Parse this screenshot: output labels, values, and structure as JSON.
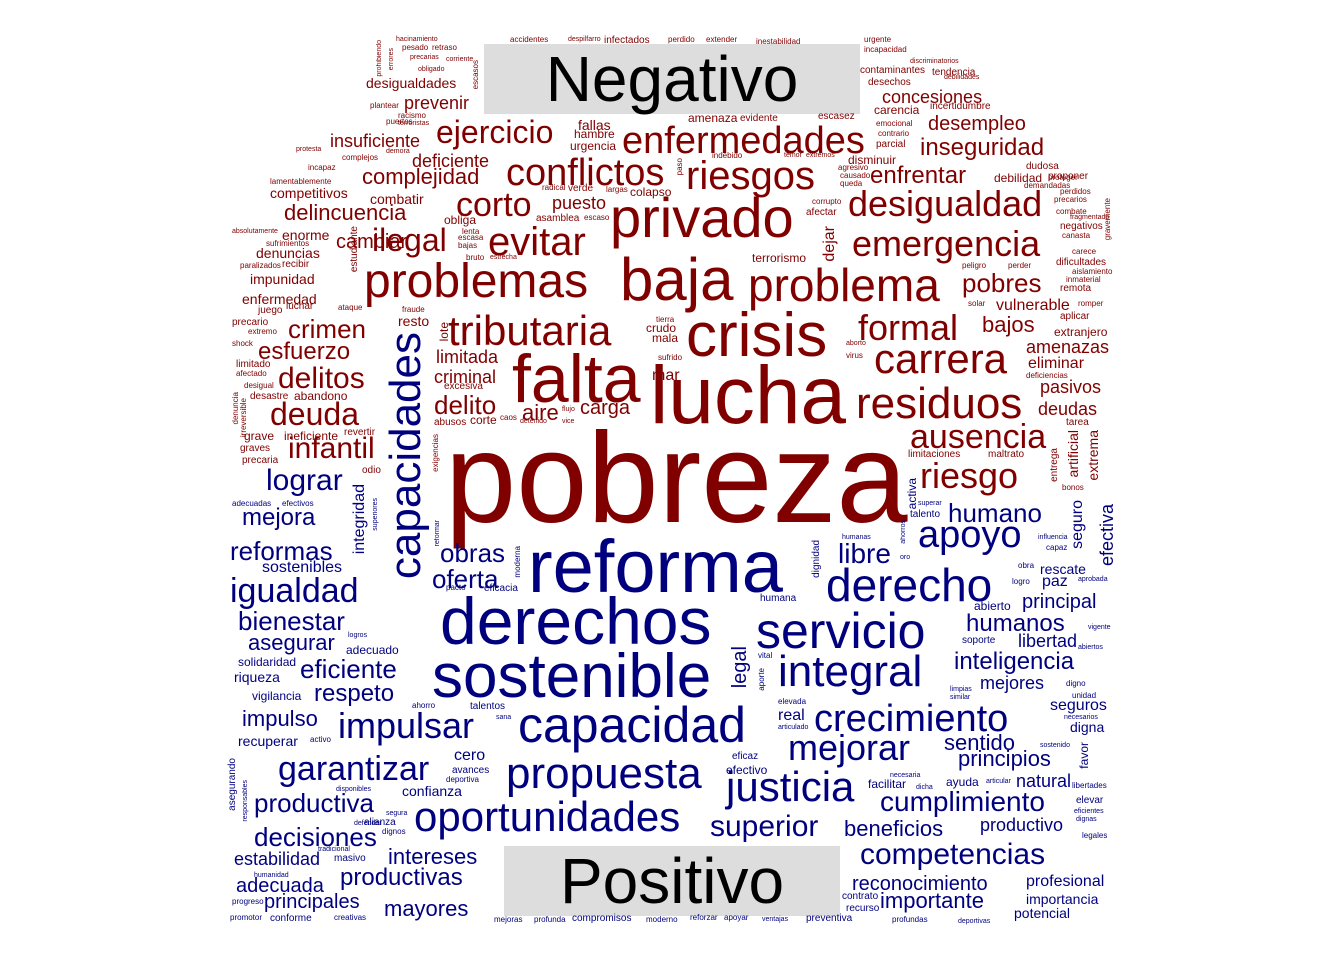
{
  "colors": {
    "negative": "#800000",
    "positive": "#00007f",
    "label_bg": "#dddddd"
  },
  "labels": {
    "negative": "Negativo",
    "positive": "Positivo"
  },
  "negative_words": [
    "pobreza",
    "lucha",
    "falta",
    "crisis",
    "baja",
    "privado",
    "problemas",
    "problema",
    "tributaria",
    "riesgos",
    "conflictos",
    "enfermedades",
    "residuos",
    "carrera",
    "emergencia",
    "desigualdad",
    "evitar",
    "formal",
    "ausencia",
    "riesgo",
    "corto",
    "ilegal",
    "ejercicio",
    "deuda",
    "delitos",
    "crimen",
    "infantil",
    "esfuerzo",
    "delito",
    "pobres",
    "complejidad",
    "delincuencia",
    "inseguridad",
    "enfrentar",
    "desempleo",
    "concesiones",
    "desigualdades",
    "prevenir",
    "insuficiente",
    "deficiente",
    "bajos",
    "deudas",
    "pasivos",
    "amenazas",
    "eliminar",
    "vulnerable",
    "criminal",
    "limitada",
    "carga",
    "aire",
    "mar",
    "crudo",
    "mala",
    "puesto",
    "fallas",
    "hambre",
    "urgencia",
    "terrorismo",
    "cambiar",
    "dejar",
    "competitivos",
    "combatir",
    "enorme",
    "denuncias",
    "impunidad",
    "enfermedad",
    "luchar",
    "resto",
    "grave",
    "graves",
    "precaria",
    "ineficiente",
    "revertir",
    "abandono",
    "desastre",
    "maltrato",
    "limitaciones",
    "tarea",
    "extrema",
    "artificial",
    "entrega",
    "odio",
    "excesiva",
    "abusos",
    "corte",
    "caos",
    "amenaza",
    "evidente",
    "escasez",
    "carencia",
    "incertidumbre",
    "contaminantes",
    "tendencia",
    "desechos",
    "disminuir",
    "parcial",
    "dudosa",
    "debilidad",
    "proponer",
    "demandadas",
    "precarios",
    "combate",
    "negativos",
    "canasta",
    "carece",
    "dificultades",
    "aislamiento",
    "inmaterial",
    "remota",
    "romper",
    "aplicar",
    "extranjero",
    "deficiencias",
    "perder",
    "peligro",
    "solar",
    "lote",
    "fraude",
    "ataque",
    "juego",
    "precario",
    "extremo",
    "shock",
    "limitado",
    "afectado",
    "desigual",
    "denuncia",
    "irreversible",
    "estudiante",
    "recibir",
    "paralizados",
    "sufrimientos",
    "absolutamente",
    "gravemente",
    "fragmentado",
    "perdidos",
    "proteger",
    "agresivo",
    "causado",
    "queda",
    "afectar",
    "corrupto",
    "obliga",
    "asamblea",
    "escaso",
    "colapso",
    "largas",
    "radical",
    "verde",
    "lenta",
    "escasa",
    "bruto",
    "estrecha",
    "bajas",
    "paso",
    "indebido",
    "temor",
    "extremos",
    "contrario",
    "emocional",
    "accidentes",
    "despilfarro",
    "infectados",
    "perdido",
    "extender",
    "inestabilidad",
    "urgente",
    "incapacidad",
    "discriminatorios",
    "debilidades",
    "hacinamiento",
    "pesado",
    "retraso",
    "precarias",
    "corriente",
    "obligado",
    "escasos",
    "prohibiendo",
    "errores",
    "complejos",
    "demora",
    "incapaz",
    "protesta",
    "puertos",
    "terroristas",
    "racismo",
    "lamentablemente",
    "plantear",
    "tierra",
    "sufrido",
    "aborto",
    "virus",
    "flujo",
    "vice",
    "detenido",
    "exigencias",
    "bonos"
  ],
  "positive_words": [
    "reforma",
    "derechos",
    "sostenible",
    "capacidad",
    "capacidades",
    "servicio",
    "derecho",
    "integral",
    "justicia",
    "propuesta",
    "oportunidades",
    "crecimiento",
    "mejorar",
    "impulsar",
    "apoyo",
    "garantizar",
    "igualdad",
    "lograr",
    "humano",
    "superior",
    "cumplimiento",
    "competencias",
    "libre",
    "reformas",
    "mejora",
    "bienestar",
    "asegurar",
    "eficiente",
    "productiva",
    "decisiones",
    "oferta",
    "obras",
    "humanos",
    "inteligencia",
    "principal",
    "principios",
    "sentido",
    "respeto",
    "impulso",
    "productivas",
    "intereses",
    "mayores",
    "principales",
    "adecuada",
    "estabilidad",
    "reconocimiento",
    "importante",
    "productivo",
    "beneficios",
    "mejores",
    "libertad",
    "seguros",
    "real",
    "cero",
    "natural",
    "legal",
    "efectiva",
    "seguro",
    "integridad",
    "sostenibles",
    "paz",
    "rescate",
    "digna",
    "riqueza",
    "solidaridad",
    "vigilancia",
    "adecuado",
    "recuperar",
    "confianza",
    "profesional",
    "importancia",
    "potencial",
    "contrato",
    "recurso",
    "preventiva",
    "mejoras",
    "profunda",
    "compromisos",
    "moderno",
    "reforzar",
    "apoyar",
    "ventajas",
    "profundas",
    "deportivas",
    "conforme",
    "creativas",
    "progreso",
    "promotor",
    "humanidad",
    "tradicional",
    "masivo",
    "alianza",
    "dignos",
    "defender",
    "segura",
    "responsables",
    "disponibles",
    "asegurando",
    "eficaz",
    "efectivo",
    "elevada",
    "articulado",
    "avances",
    "deportiva",
    "talentos",
    "ahorro",
    "sana",
    "aporte",
    "vital",
    "activo",
    "logros",
    "eficacia",
    "pacto",
    "moderna",
    "reformar",
    "superar",
    "talento",
    "activa",
    "humanas",
    "ahorros",
    "oro",
    "dignidad",
    "humana",
    "abierto",
    "soporte",
    "logro",
    "obra",
    "aprobada",
    "influencia",
    "capaz",
    "vigente",
    "abiertos",
    "digno",
    "unidad",
    "necesarios",
    "sostenido",
    "favor",
    "facilitar",
    "ayuda",
    "necesaria",
    "dicha",
    "articular",
    "libertades",
    "elevar",
    "eficientes",
    "dignas",
    "legales",
    "limpias",
    "similar",
    "adecuadas",
    "efectivos",
    "superiores"
  ]
}
